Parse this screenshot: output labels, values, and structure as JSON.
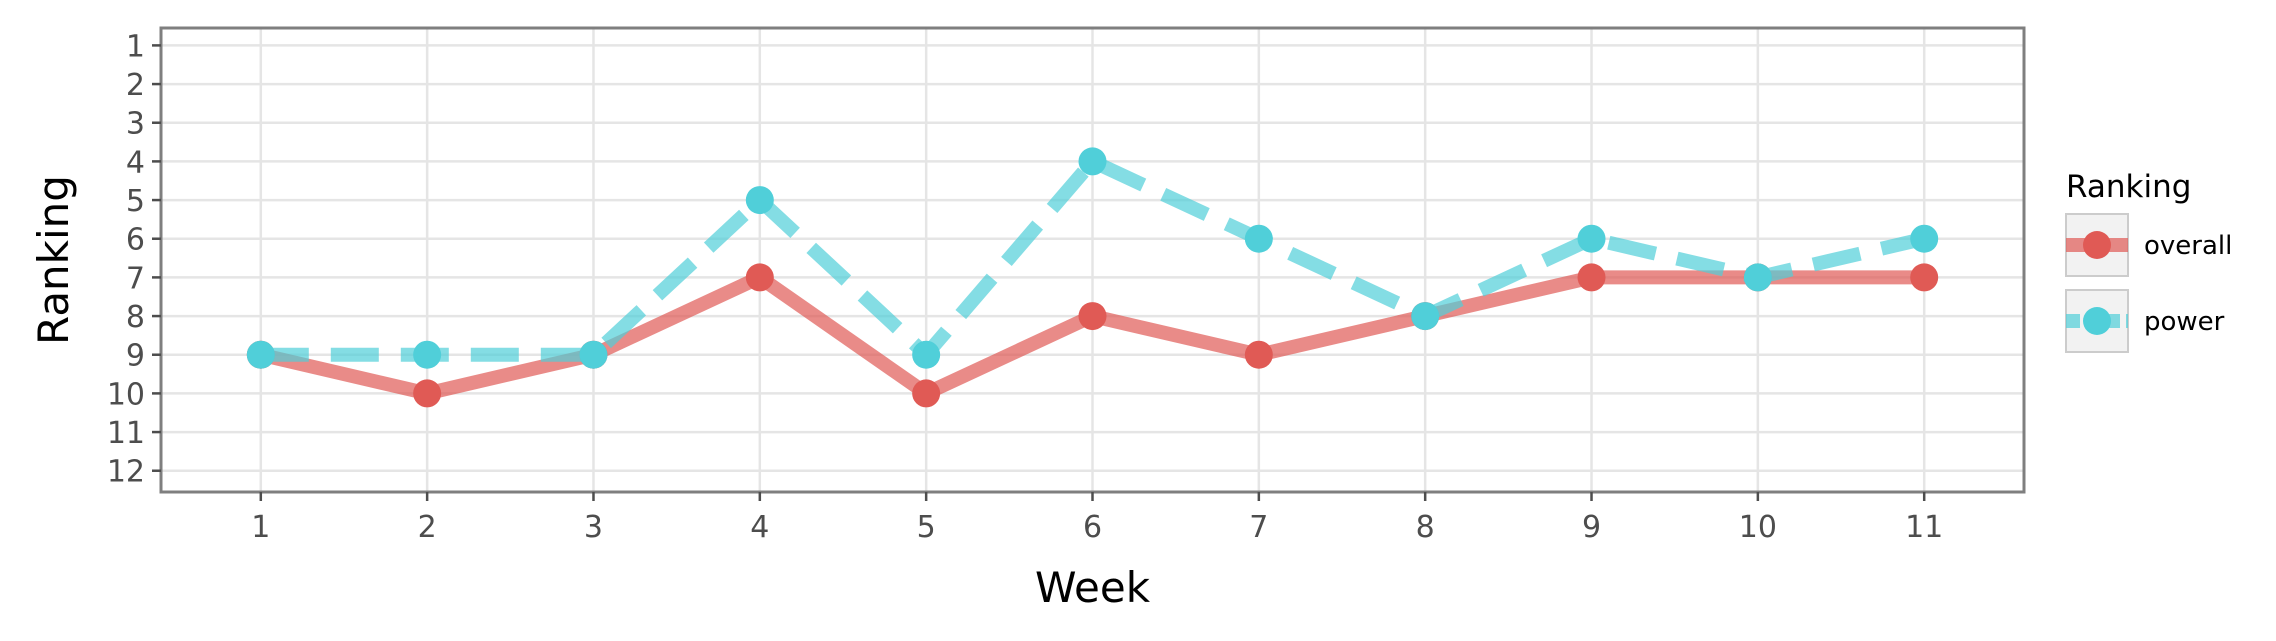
{
  "chart_data": {
    "type": "line",
    "xlabel": "Week",
    "ylabel": "Ranking",
    "x": [
      1,
      2,
      3,
      4,
      5,
      6,
      7,
      8,
      9,
      10,
      11
    ],
    "xlim": [
      0.4,
      11.6
    ],
    "ylim": [
      12.55,
      0.55
    ],
    "y_reversed": true,
    "y_ticks": [
      1,
      2,
      3,
      4,
      5,
      6,
      7,
      8,
      9,
      10,
      11,
      12
    ],
    "grid": true,
    "legend_title": "Ranking",
    "legend_position": "right",
    "series": [
      {
        "name": "overall",
        "values": [
          9,
          10,
          9,
          7,
          10,
          8,
          9,
          8,
          7,
          7,
          7
        ],
        "color": "#E05A55",
        "line_style": "solid"
      },
      {
        "name": "power",
        "values": [
          9,
          9,
          9,
          5,
          9,
          4,
          6,
          8,
          6,
          7,
          6
        ],
        "color": "#50CFD9",
        "line_style": "dashed"
      }
    ]
  }
}
